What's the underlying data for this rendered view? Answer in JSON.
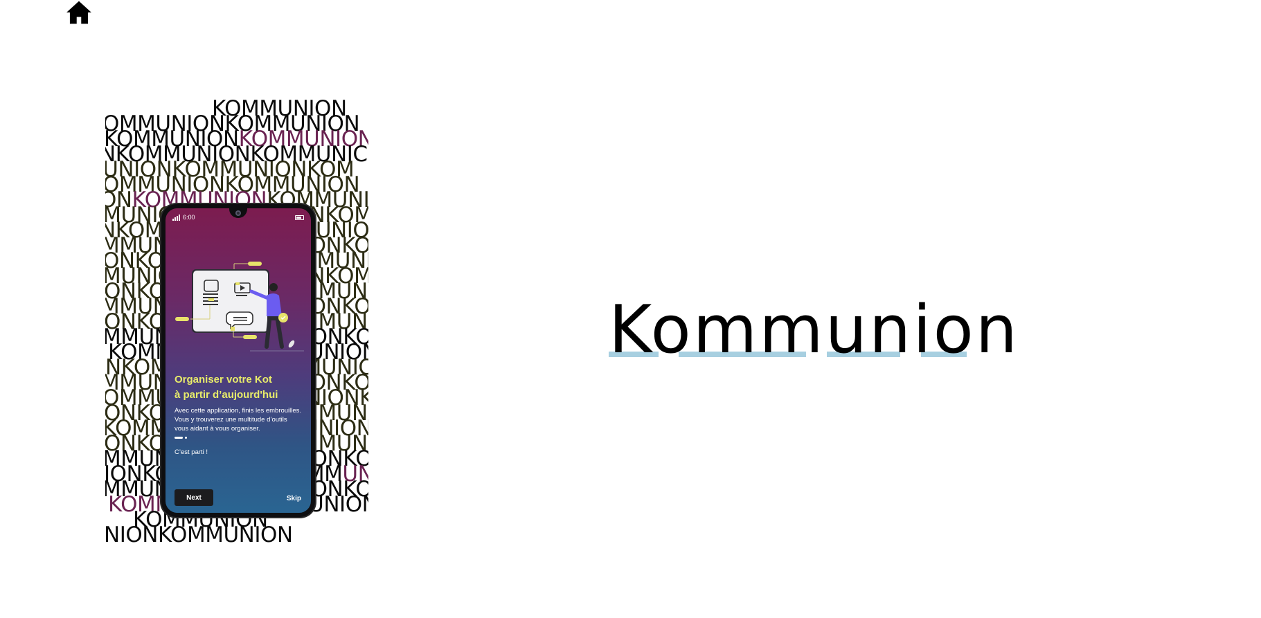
{
  "nav": {
    "home_icon": "home-icon"
  },
  "brand": {
    "name": "Kommunion",
    "underline_color": "#a7cfe0"
  },
  "poster": {
    "word": "KOMMUNION",
    "text_color": "#0a0a0a",
    "accent_color": "#6a2352",
    "lines": [
      "KOMMUNION",
      "OMMUNIONKOMMUNION",
      "KOMMUNIONKOMMUNIOI",
      "NKOMMUNIONKOMMUNIC",
      "MUNIONKOMMUNIONKOM",
      "OMMUNIONKOMMUNION",
      "ONKOMMUNIONKOMMUN",
      "MMUN MUNKO",
      "NKOM NKOMMUNION",
      "MMUN MUNIO",
      "ONKO ONKO",
      "MUNIO UNION",
      "KOMM NKOMN",
      "MUNIC MUNIO",
      "ONKO ONKO",
      "KOMMUN UNIO",
      "ONKOM KOMM",
      "MMUN MUNIO",
      "ONKO ONKO",
      "MUNIO UNION",
      "KOMMUNION MUNI",
      "MMUNIO NION",
      "IONKON KOMMUN",
      "MMUNIO ONKO",
      "KOMMUNIONKOMMUNIO",
      "KOMMUNION",
      "NIONKOMMUNION"
    ]
  },
  "phone": {
    "status_time": "6:00",
    "title_line1": "Organiser votre Kot",
    "title_line2": "à partir d’aujourd'hui",
    "desc_line1": "Avec cette application, finis les embrouilles.",
    "desc_line2": "Vous y trouverez une multitude d’outils",
    "desc_line3": "vous aidant à vous organiser.",
    "cta": "C’est parti !",
    "next_label": "Next",
    "skip_label": "Skip",
    "title_color": "#e8ec6a",
    "gradient_top": "#7c1c4f",
    "gradient_bottom": "#2a6592"
  }
}
